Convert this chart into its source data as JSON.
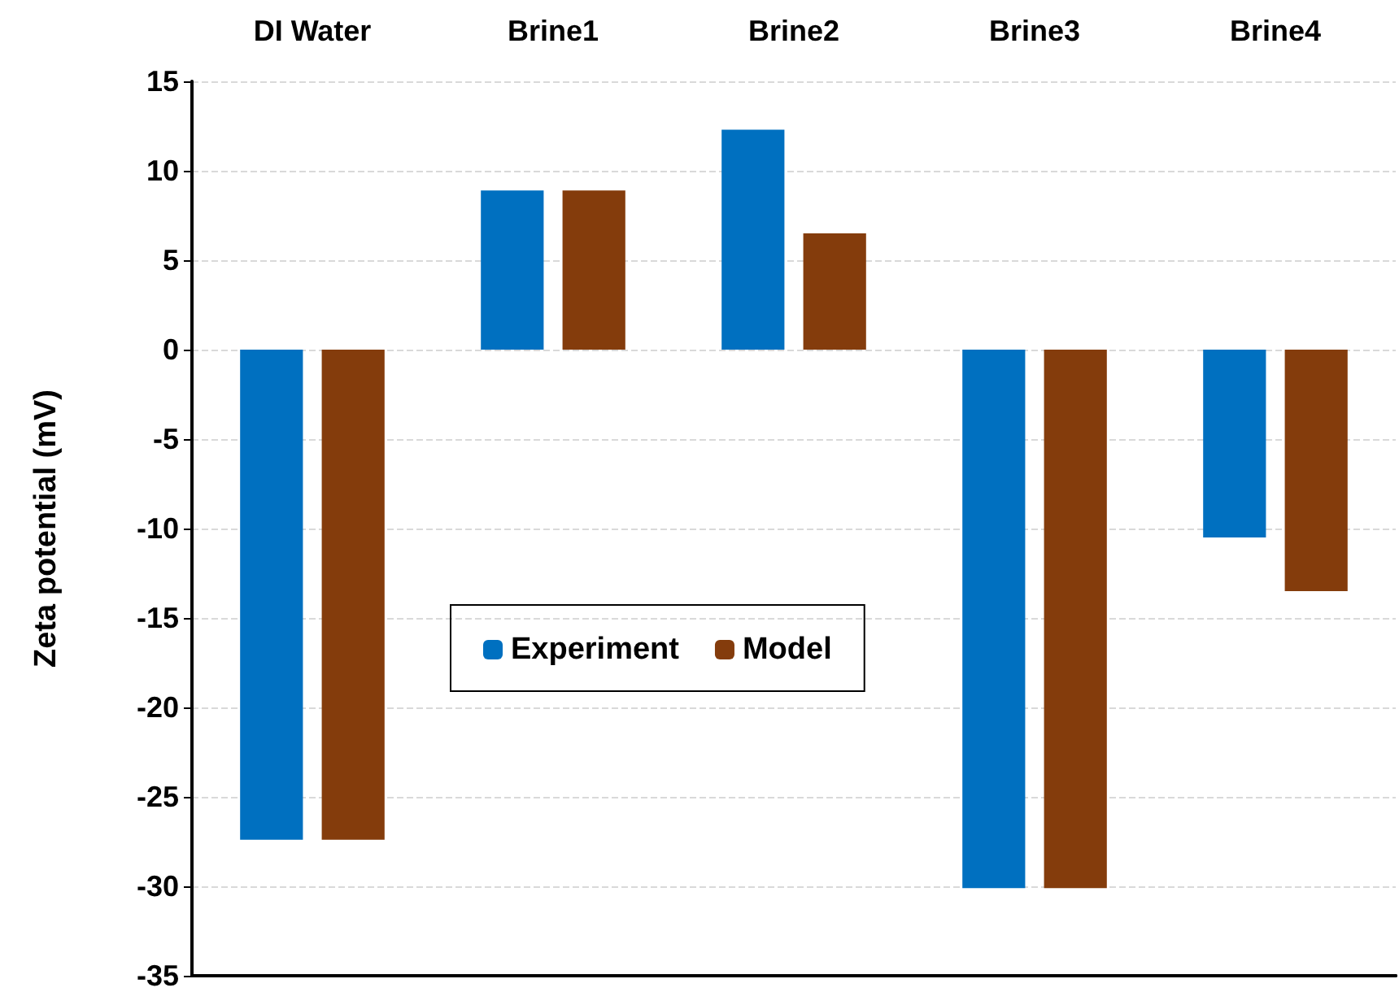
{
  "chart_data": {
    "type": "bar",
    "ylabel": "Zeta potential (mV)",
    "categories": [
      "DI Water",
      "Brine1",
      "Brine2",
      "Brine3",
      "Brine4"
    ],
    "series": [
      {
        "name": "Experiment",
        "color": "#0070c0",
        "values": [
          -27.4,
          8.9,
          12.3,
          -30.1,
          -10.5
        ]
      },
      {
        "name": "Model",
        "color": "#843c0c",
        "values": [
          -27.4,
          8.9,
          6.5,
          -30.1,
          -13.5
        ]
      }
    ],
    "ylim": [
      -35,
      15
    ],
    "yticks": [
      -35,
      -30,
      -25,
      -20,
      -15,
      -10,
      -5,
      0,
      5,
      10,
      15
    ],
    "grid": "y",
    "legend": "center"
  }
}
